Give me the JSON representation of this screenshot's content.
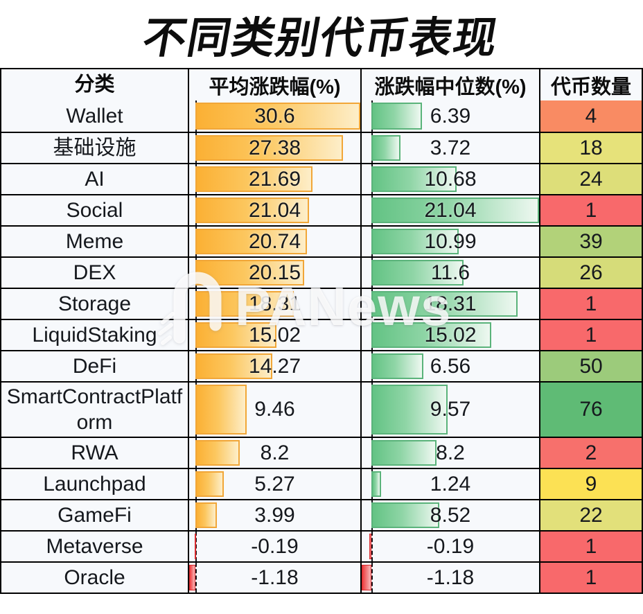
{
  "title": "不同类别代币表现",
  "watermark": {
    "text": "PANews"
  },
  "chart_data": {
    "type": "table",
    "title": "不同类别代币表现",
    "columns": [
      "分类",
      "平均涨跌幅(%)",
      "涨跌幅中位数(%)",
      "代币数量"
    ],
    "avg_axis": {
      "min": -1.18,
      "max": 30.6
    },
    "median_axis": {
      "min": -1.18,
      "max": 21.04
    },
    "colors": {
      "avg_bar": "#fbb034",
      "avg_bar_border": "#f1a637",
      "median_bar": "#63c384",
      "median_bar_border": "#5ab37a",
      "negative_bar": "#ee3a3c",
      "count_scale_low": "#f8696b",
      "count_scale_mid": "#ffe257",
      "count_scale_high": "#5fbb75"
    },
    "rows": [
      {
        "category": "Wallet",
        "avg": 30.6,
        "median": 6.39,
        "count": 4,
        "count_color": "#f98b63"
      },
      {
        "category": "基础设施",
        "avg": 27.38,
        "median": 3.72,
        "count": 18,
        "count_color": "#e6e27a"
      },
      {
        "category": "AI",
        "avg": 21.69,
        "median": 10.68,
        "count": 24,
        "count_color": "#ddde79"
      },
      {
        "category": "Social",
        "avg": 21.04,
        "median": 21.04,
        "count": 1,
        "count_color": "#f8696b"
      },
      {
        "category": "Meme",
        "avg": 20.74,
        "median": 10.99,
        "count": 39,
        "count_color": "#b2d279"
      },
      {
        "category": "DEX",
        "avg": 20.15,
        "median": 11.6,
        "count": 26,
        "count_color": "#d6dc79"
      },
      {
        "category": "Storage",
        "avg": 18.31,
        "median": 18.31,
        "count": 1,
        "count_color": "#f8696b"
      },
      {
        "category": "LiquidStaking",
        "avg": 15.02,
        "median": 15.02,
        "count": 1,
        "count_color": "#f8696b"
      },
      {
        "category": "DeFi",
        "avg": 14.27,
        "median": 6.56,
        "count": 50,
        "count_color": "#9ccb7b"
      },
      {
        "category": "SmartContractPlatform",
        "avg": 9.46,
        "median": 9.57,
        "count": 76,
        "count_color": "#5fbb75"
      },
      {
        "category": "RWA",
        "avg": 8.2,
        "median": 8.2,
        "count": 2,
        "count_color": "#f7706c"
      },
      {
        "category": "Launchpad",
        "avg": 5.27,
        "median": 1.24,
        "count": 9,
        "count_color": "#fce154"
      },
      {
        "category": "GameFi",
        "avg": 3.99,
        "median": 8.52,
        "count": 22,
        "count_color": "#e2e07a"
      },
      {
        "category": "Metaverse",
        "avg": -0.19,
        "median": -0.19,
        "count": 1,
        "count_color": "#f8696b"
      },
      {
        "category": "Oracle",
        "avg": -1.18,
        "median": -1.18,
        "count": 1,
        "count_color": "#f8696b"
      }
    ]
  }
}
